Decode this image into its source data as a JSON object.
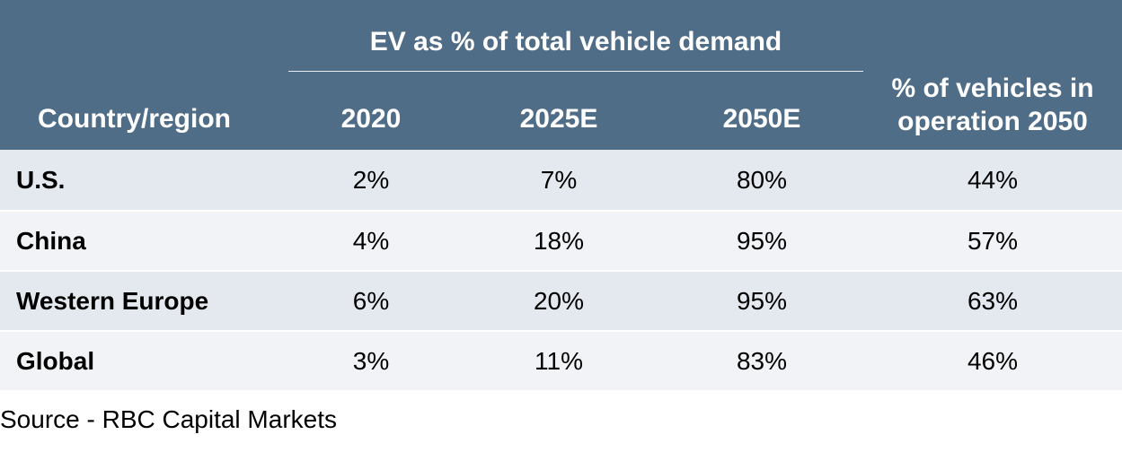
{
  "chart_data": {
    "type": "table",
    "group_header": "EV as % of total vehicle demand",
    "columns": [
      "Country/region",
      "2020",
      "2025E",
      "2050E",
      "% of vehicles in operation 2050"
    ],
    "rows": [
      {
        "region": "U.S.",
        "y2020": "2%",
        "y2025e": "7%",
        "y2050e": "80%",
        "op2050": "44%"
      },
      {
        "region": "China",
        "y2020": "4%",
        "y2025e": "18%",
        "y2050e": "95%",
        "op2050": "57%"
      },
      {
        "region": "Western Europe",
        "y2020": "6%",
        "y2025e": "20%",
        "y2050e": "95%",
        "op2050": "63%"
      },
      {
        "region": "Global",
        "y2020": "3%",
        "y2025e": "11%",
        "y2050e": "83%",
        "op2050": "46%"
      }
    ],
    "source": "Source - RBC Capital Markets"
  },
  "colors": {
    "header_bg": "#506d87",
    "row_odd": "#e4e9ef",
    "row_even": "#f1f3f6"
  }
}
